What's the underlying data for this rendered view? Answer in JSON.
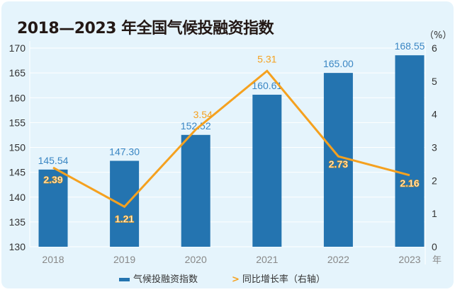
{
  "chart_data": {
    "type": "bar+line",
    "title": "2018—2023 年全国气候投融资指数",
    "categories": [
      "2018",
      "2019",
      "2020",
      "2021",
      "2022",
      "2023"
    ],
    "x_unit": "年",
    "series": [
      {
        "name": "气候投融资指数",
        "type": "bar",
        "axis": "left",
        "values": [
          145.54,
          147.3,
          152.52,
          160.61,
          165.0,
          168.55
        ],
        "labels": [
          "145.54",
          "147.30",
          "152.52",
          "160.61",
          "165.00",
          "168.55"
        ],
        "color": "#2474b0"
      },
      {
        "name": "同比增长率（右轴）",
        "type": "line",
        "axis": "right",
        "values": [
          2.39,
          1.21,
          3.54,
          5.31,
          2.73,
          2.16
        ],
        "labels": [
          "2.39",
          "1.21",
          "3.54",
          "5.31",
          "2.73",
          "2.16"
        ],
        "color": "#f5a11f"
      }
    ],
    "left_axis": {
      "ylim": [
        130,
        170
      ],
      "ticks": [
        "130",
        "135",
        "140",
        "145",
        "150",
        "155",
        "160",
        "165",
        "170"
      ]
    },
    "right_axis": {
      "unit": "（%）",
      "ylim": [
        0,
        6
      ],
      "ticks": [
        "0",
        "1",
        "2",
        "3",
        "4",
        "5",
        "6"
      ]
    },
    "grid": true,
    "legend": "bottom"
  }
}
